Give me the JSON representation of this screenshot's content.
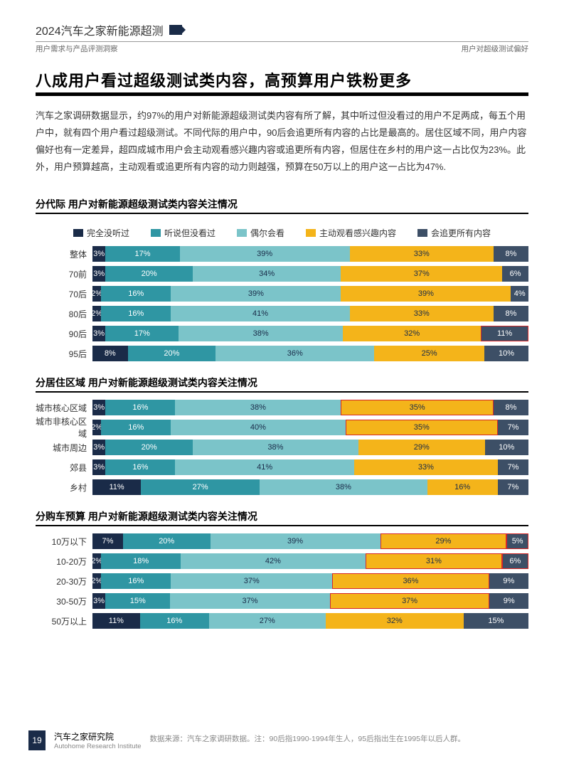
{
  "header": {
    "title": "2024汽车之家新能源超测",
    "sub_left": "用户需求与产品评测洞察",
    "sub_right": "用户对超级测试偏好"
  },
  "main_title": "八成用户看过超级测试类内容，高预算用户铁粉更多",
  "body_text": "汽车之家调研数据显示，约97%的用户对新能源超级测试类内容有所了解，其中听过但没看过的用户不足两成，每五个用户中，就有四个用户看过超级测试。不同代际的用户中，90后会追更所有内容的占比是最高的。居住区域不同，用户内容偏好也有一定差异，超四成城市用户会主动观看感兴趣内容或追更所有内容，但居住在乡村的用户这一占比仅为23%。此外，用户预算越高，主动观看或追更所有内容的动力则越强，预算在50万以上的用户这一占比为47%.",
  "colors": {
    "c1": "#1a2b48",
    "c2": "#2f96a3",
    "c3": "#7bc4c9",
    "c4": "#f4b41a",
    "c5": "#3d4f66"
  },
  "legend": [
    {
      "label": "完全没听过",
      "color": "c1"
    },
    {
      "label": "听说但没看过",
      "color": "c2"
    },
    {
      "label": "偶尔会看",
      "color": "c3"
    },
    {
      "label": "主动观看感兴趣内容",
      "color": "c4"
    },
    {
      "label": "会追更所有内容",
      "color": "c5"
    }
  ],
  "sections": [
    {
      "title": "分代际 用户对新能源超级测试类内容关注情况",
      "show_legend": true,
      "rows": [
        {
          "label": "整体",
          "values": [
            3,
            17,
            39,
            33,
            8
          ],
          "hl": []
        },
        {
          "label": "70前",
          "values": [
            3,
            20,
            34,
            37,
            6
          ],
          "hl": []
        },
        {
          "label": "70后",
          "values": [
            2,
            16,
            39,
            39,
            4
          ],
          "hl": []
        },
        {
          "label": "80后",
          "values": [
            2,
            16,
            41,
            33,
            8
          ],
          "hl": []
        },
        {
          "label": "90后",
          "values": [
            3,
            17,
            38,
            32,
            11
          ],
          "hl": [
            4
          ]
        },
        {
          "label": "95后",
          "values": [
            8,
            20,
            36,
            25,
            10
          ],
          "hl": []
        }
      ]
    },
    {
      "title": "分居住区域 用户对新能源超级测试类内容关注情况",
      "show_legend": false,
      "rows": [
        {
          "label": "城市核心区域",
          "values": [
            3,
            16,
            38,
            35,
            8
          ],
          "hl": [
            3
          ]
        },
        {
          "label": "城市非核心区域",
          "values": [
            2,
            16,
            40,
            35,
            7
          ],
          "hl": [
            3
          ]
        },
        {
          "label": "城市周边",
          "values": [
            3,
            20,
            38,
            29,
            10
          ],
          "hl": []
        },
        {
          "label": "郊县",
          "values": [
            3,
            16,
            41,
            33,
            7
          ],
          "hl": []
        },
        {
          "label": "乡村",
          "values": [
            11,
            27,
            38,
            16,
            7
          ],
          "hl": []
        }
      ]
    },
    {
      "title": "分购车预算 用户对新能源超级测试类内容关注情况",
      "show_legend": false,
      "rows": [
        {
          "label": "10万以下",
          "values": [
            7,
            20,
            39,
            29,
            5
          ],
          "hl": [
            3,
            4
          ]
        },
        {
          "label": "10-20万",
          "values": [
            2,
            18,
            42,
            31,
            6
          ],
          "hl": [
            3,
            4
          ]
        },
        {
          "label": "20-30万",
          "values": [
            2,
            16,
            37,
            36,
            9
          ],
          "hl": [
            3
          ]
        },
        {
          "label": "30-50万",
          "values": [
            3,
            15,
            37,
            37,
            9
          ],
          "hl": [
            3
          ]
        },
        {
          "label": "50万以上",
          "values": [
            11,
            16,
            27,
            32,
            15
          ],
          "hl": []
        }
      ]
    }
  ],
  "footer": {
    "page_num": "19",
    "brand_cn": "汽车之家研究院",
    "brand_en": "Autohome Research Institute",
    "note": "数据来源：汽车之家调研数据。注：90后指1990-1994年生人，95后指出生在1995年以后人群。"
  }
}
